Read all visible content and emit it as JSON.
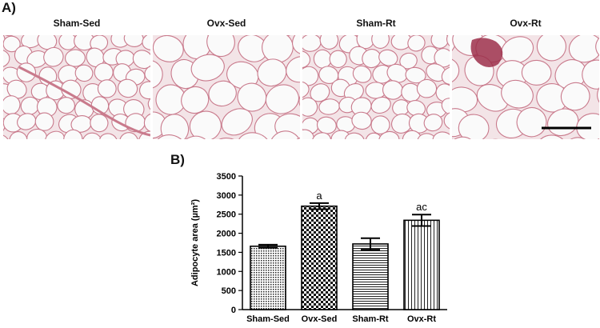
{
  "panel_a_label": "A)",
  "panel_b_label": "B)",
  "micrographs": [
    {
      "title": "Sham-Sed",
      "image": "adipose-histology-small-cells",
      "scale_bar": false
    },
    {
      "title": "Ovx-Sed",
      "image": "adipose-histology-large-cells",
      "scale_bar": false
    },
    {
      "title": "Sham-Rt",
      "image": "adipose-histology-small-cells",
      "scale_bar": false
    },
    {
      "title": "Ovx-Rt",
      "image": "adipose-histology-large-cells",
      "scale_bar": true
    }
  ],
  "colors": {
    "membrane": "#c97a8c",
    "cell_fill": "#fafafa",
    "tissue_bg": "#f3e4e7",
    "dense_stroma": "#9c2f4a"
  },
  "chart_data": {
    "type": "bar",
    "ylabel": "Adipocyte area (µm²)",
    "xlabel": "",
    "ylim": [
      0,
      3500
    ],
    "yticks": [
      0,
      500,
      1000,
      1500,
      2000,
      2500,
      3000,
      3500
    ],
    "categories": [
      "Sham-Sed",
      "Ovx-Sed",
      "Sham-Rt",
      "Ovx-Rt"
    ],
    "values": [
      1660,
      2710,
      1720,
      2340
    ],
    "errors": [
      40,
      80,
      150,
      150
    ],
    "annotations": [
      "",
      "a",
      "",
      "ac"
    ],
    "patterns": [
      "fine-dots",
      "checkerboard",
      "horizontal-lines",
      "vertical-lines"
    ],
    "grid": false,
    "legend": "none"
  }
}
